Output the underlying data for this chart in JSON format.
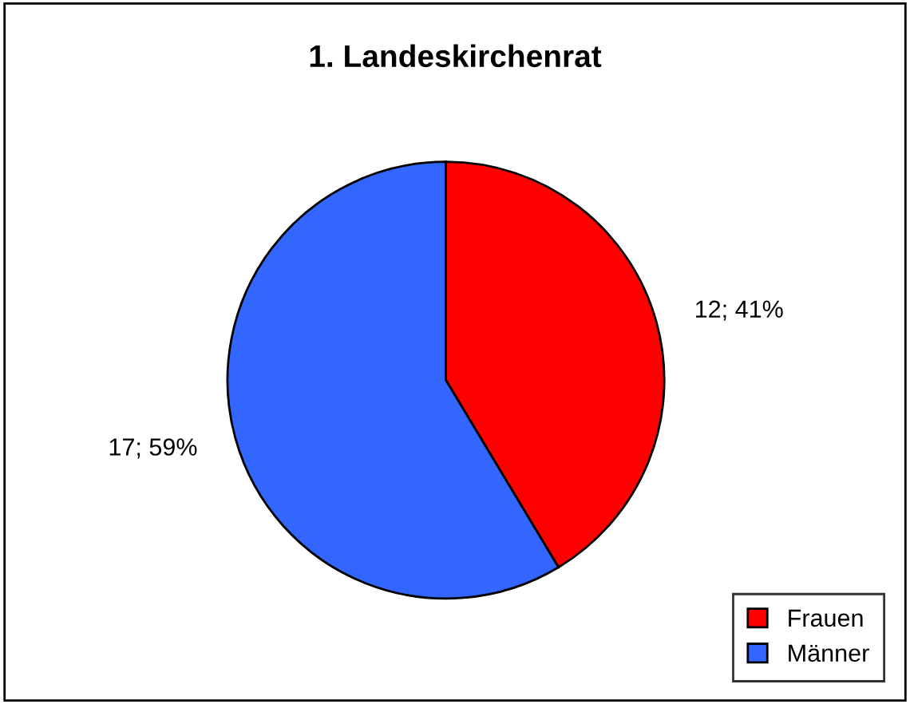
{
  "chart_data": {
    "type": "pie",
    "title": "1. Landeskirchenrat",
    "categories": [
      "Frauen",
      "Männer"
    ],
    "values": [
      12,
      17
    ],
    "colors": [
      "#ff0000",
      "#3366ff"
    ],
    "value_labels": [
      "12; 41%",
      "17; 59%"
    ],
    "legend": "bottom right"
  }
}
